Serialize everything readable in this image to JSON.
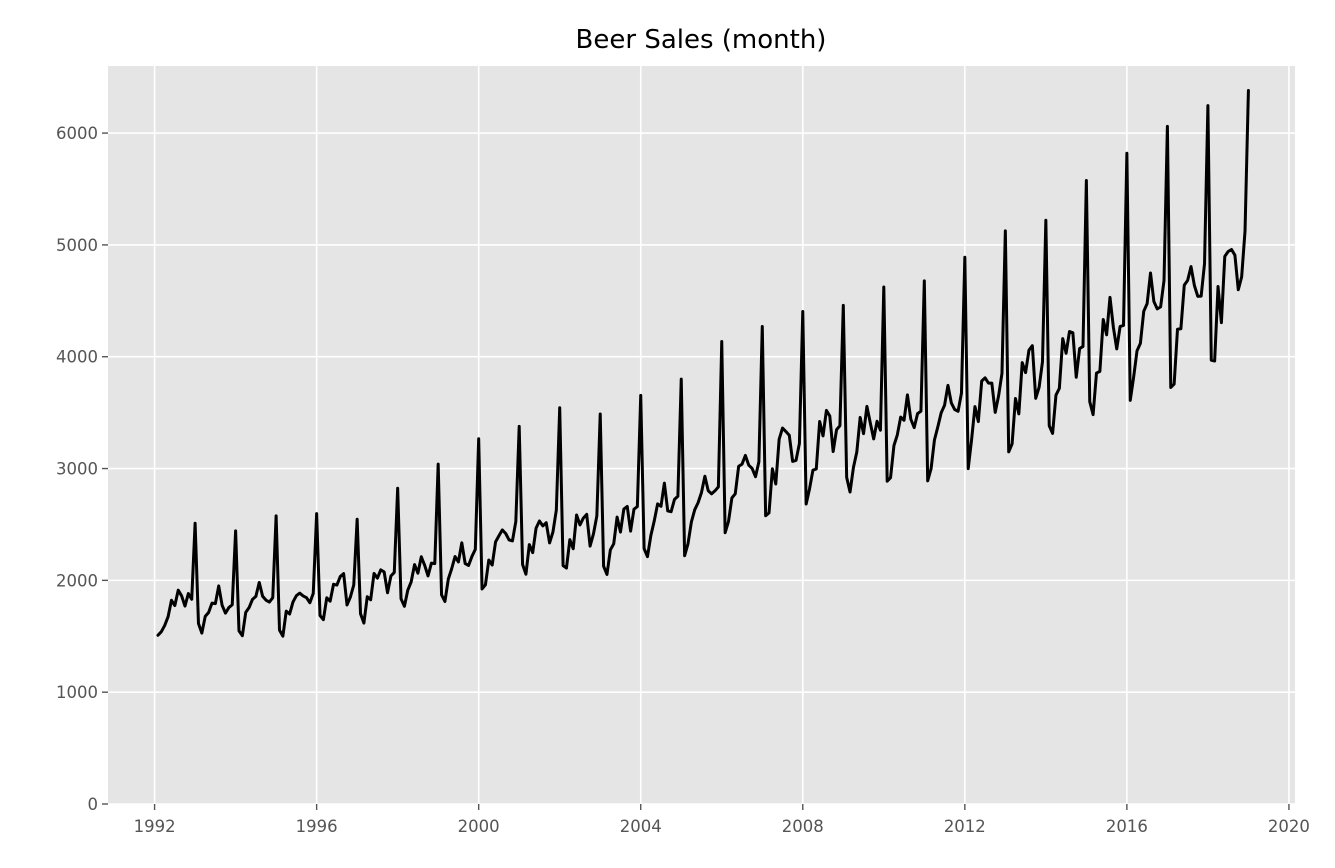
{
  "chart_data": {
    "type": "line",
    "title": "Beer Sales (month)",
    "xlabel": "",
    "ylabel": "",
    "xlim": [
      1990.85,
      2020.15
    ],
    "ylim": [
      0,
      6600
    ],
    "x_ticks": [
      1992,
      1996,
      2000,
      2004,
      2008,
      2012,
      2016,
      2020
    ],
    "y_ticks": [
      0,
      1000,
      2000,
      3000,
      4000,
      5000,
      6000
    ],
    "grid": true,
    "legend": "none",
    "x_start": 1992.0833,
    "x_step": 0.0833333,
    "x_unit": "year (monthly observations)",
    "colors": {
      "line": "#000000",
      "plot_bg": "#e5e5e5",
      "grid": "#ffffff",
      "tick_text": "#555555",
      "title": "#000000"
    },
    "series": [
      {
        "values": [
          1509,
          1541,
          1597,
          1675,
          1822,
          1775,
          1912,
          1862,
          1770,
          1882,
          1831,
          2511,
          1614,
          1528,
          1678,
          1713,
          1796,
          1792,
          1950,
          1777,
          1707,
          1757,
          1782,
          2443,
          1548,
          1505,
          1714,
          1757,
          1830,
          1857,
          1981,
          1858,
          1823,
          1806,
          1845,
          2577,
          1555,
          1501,
          1725,
          1699,
          1807,
          1863,
          1886,
          1861,
          1845,
          1800,
          1884,
          2597,
          1685,
          1649,
          1844,
          1814,
          1965,
          1958,
          2034,
          2060,
          1780,
          1851,
          1960,
          2546,
          1702,
          1618,
          1854,
          1826,
          2062,
          2020,
          2094,
          2076,
          1889,
          2039,
          2071,
          2824,
          1835,
          1768,
          1912,
          1986,
          2141,
          2064,
          2211,
          2135,
          2040,
          2154,
          2150,
          3039,
          1871,
          1811,
          2011,
          2104,
          2213,
          2165,
          2336,
          2150,
          2133,
          2214,
          2277,
          3267,
          1923,
          1960,
          2182,
          2137,
          2344,
          2399,
          2451,
          2419,
          2362,
          2353,
          2526,
          3377,
          2142,
          2055,
          2320,
          2248,
          2467,
          2531,
          2487,
          2516,
          2335,
          2433,
          2628,
          3544,
          2132,
          2110,
          2364,
          2283,
          2585,
          2496,
          2557,
          2590,
          2306,
          2416,
          2576,
          3488,
          2127,
          2053,
          2272,
          2327,
          2566,
          2432,
          2638,
          2661,
          2440,
          2637,
          2660,
          3654,
          2284,
          2212,
          2401,
          2531,
          2684,
          2662,
          2870,
          2621,
          2614,
          2724,
          2752,
          3800,
          2220,
          2327,
          2522,
          2632,
          2695,
          2786,
          2931,
          2801,
          2774,
          2801,
          2836,
          4136,
          2426,
          2527,
          2737,
          2774,
          3019,
          3039,
          3117,
          3030,
          3001,
          2927,
          3060,
          4270,
          2578,
          2604,
          2998,
          2862,
          3262,
          3362,
          3331,
          3298,
          3064,
          3074,
          3224,
          4404,
          2683,
          2818,
          2985,
          2996,
          3421,
          3292,
          3520,
          3470,
          3152,
          3347,
          3383,
          4459,
          2921,
          2790,
          3009,
          3147,
          3457,
          3312,
          3556,
          3408,
          3265,
          3423,
          3343,
          4624,
          2887,
          2918,
          3205,
          3301,
          3460,
          3432,
          3659,
          3442,
          3366,
          3491,
          3513,
          4678,
          2890,
          2998,
          3255,
          3373,
          3499,
          3566,
          3744,
          3587,
          3528,
          3512,
          3674,
          4890,
          2999,
          3258,
          3554,
          3420,
          3783,
          3811,
          3764,
          3764,
          3502,
          3650,
          3850,
          5125,
          3149,
          3220,
          3626,
          3489,
          3947,
          3858,
          4059,
          4099,
          3628,
          3726,
          3954,
          5220,
          3383,
          3314,
          3657,
          3717,
          4162,
          4031,
          4226,
          4214,
          3816,
          4073,
          4092,
          5576,
          3599,
          3482,
          3854,
          3869,
          4333,
          4196,
          4531,
          4263,
          4070,
          4271,
          4280,
          5820,
          3610,
          3817,
          4052,
          4119,
          4406,
          4475,
          4749,
          4494,
          4428,
          4446,
          4681,
          6060,
          3725,
          3755,
          4246,
          4250,
          4640,
          4683,
          4806,
          4637,
          4540,
          4542,
          4832,
          6246,
          3969,
          3962,
          4628,
          4305,
          4897,
          4941,
          4959,
          4908,
          4599,
          4714,
          5124,
          6381
        ]
      }
    ]
  }
}
